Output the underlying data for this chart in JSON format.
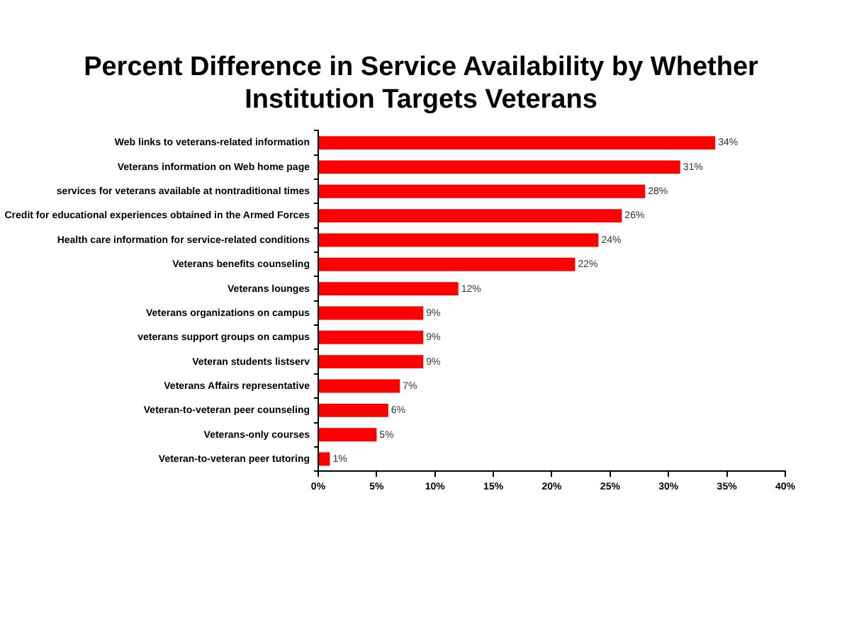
{
  "chart_data": {
    "type": "bar",
    "orientation": "horizontal",
    "title": "Percent Difference in Service Availability by Whether Institution Targets Veterans",
    "categories": [
      "Web links to veterans-related information",
      "Veterans information on Web home page",
      "services for veterans available at nontraditional times",
      "Credit for educational experiences obtained in the Armed Forces",
      "Health care information for service-related conditions",
      "Veterans benefits counseling",
      "Veterans lounges",
      "Veterans organizations on campus",
      "veterans support groups on campus",
      "Veteran students listserv",
      "Veterans Affairs representative",
      "Veteran-to-veteran peer counseling",
      "Veterans-only courses",
      "Veteran-to-veteran peer tutoring"
    ],
    "values": [
      34,
      31,
      28,
      26,
      24,
      22,
      12,
      9,
      9,
      9,
      7,
      6,
      5,
      1
    ],
    "value_labels": [
      "34%",
      "31%",
      "28%",
      "26%",
      "24%",
      "22%",
      "12%",
      "9%",
      "9%",
      "9%",
      "7%",
      "6%",
      "5%",
      "1%"
    ],
    "color": "#ff0000",
    "xlim": [
      0,
      40
    ],
    "xticks": [
      {
        "value": 0,
        "label": "0%"
      },
      {
        "value": 5,
        "label": "5%"
      },
      {
        "value": 10,
        "label": "10%"
      },
      {
        "value": 15,
        "label": "15%"
      },
      {
        "value": 20,
        "label": "20%"
      },
      {
        "value": 25,
        "label": "25%"
      },
      {
        "value": 30,
        "label": "30%"
      },
      {
        "value": 35,
        "label": "35%"
      },
      {
        "value": 40,
        "label": "40%"
      }
    ],
    "grid": false,
    "legend": false
  }
}
